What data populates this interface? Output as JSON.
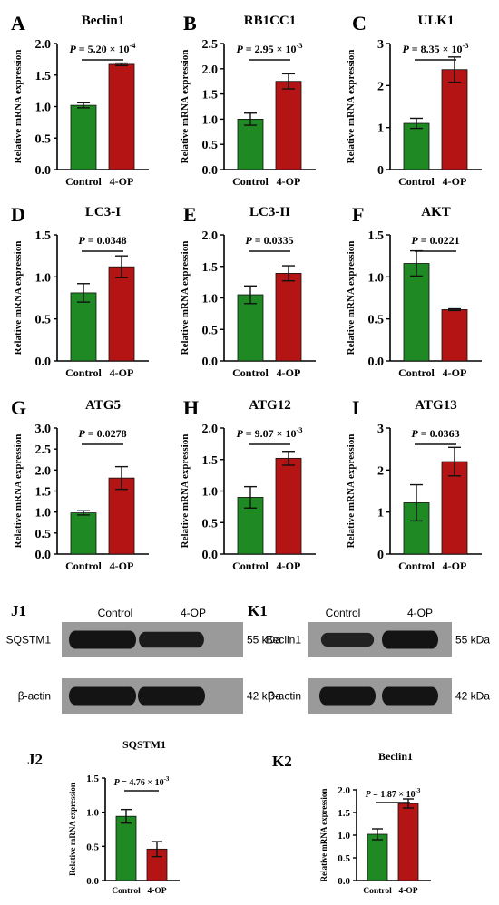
{
  "colors": {
    "control": "#1f8a24",
    "treated": "#b51414",
    "axis": "#000000",
    "blot_bg": "#9a9a9a",
    "band": "#141414"
  },
  "chart_data": [
    {
      "id": "A",
      "panel": "A",
      "gene": "Beclin1",
      "type": "bar",
      "categories": [
        "Control",
        "4-OP"
      ],
      "values": [
        1.02,
        1.67
      ],
      "errors": [
        0.04,
        0.02
      ],
      "ylim": [
        0,
        2.0
      ],
      "ticks": [
        "0.0",
        "0.5",
        "1.0",
        "1.5",
        "2.0"
      ],
      "ylabel": "Relative mRNA expression",
      "p_label": "P",
      "p_text": " = 5.20 × 10",
      "p_exp": "-4"
    },
    {
      "id": "B",
      "panel": "B",
      "gene": "RB1CC1",
      "type": "bar",
      "categories": [
        "Control",
        "4-OP"
      ],
      "values": [
        1.0,
        1.75
      ],
      "errors": [
        0.12,
        0.15
      ],
      "ylim": [
        0,
        2.5
      ],
      "ticks": [
        "0.0",
        "0.5",
        "1.0",
        "1.5",
        "2.0",
        "2.5"
      ],
      "ylabel": "Relative mRNA expression",
      "p_label": "P",
      "p_text": " = 2.95 × 10",
      "p_exp": "-3"
    },
    {
      "id": "C",
      "panel": "C",
      "gene": "ULK1",
      "type": "bar",
      "categories": [
        "Control",
        "4-OP"
      ],
      "values": [
        1.1,
        2.38
      ],
      "errors": [
        0.12,
        0.3
      ],
      "ylim": [
        0,
        3
      ],
      "ticks": [
        "0",
        "1",
        "2",
        "3"
      ],
      "ylabel": "Relative mRNA expression",
      "p_label": "P",
      "p_text": " = 8.35 × 10",
      "p_exp": "-3"
    },
    {
      "id": "D",
      "panel": "D",
      "gene": "LC3-I",
      "type": "bar",
      "categories": [
        "Control",
        "4-OP"
      ],
      "values": [
        0.81,
        1.12
      ],
      "errors": [
        0.11,
        0.13
      ],
      "ylim": [
        0,
        1.5
      ],
      "ticks": [
        "0.0",
        "0.5",
        "1.0",
        "1.5"
      ],
      "ylabel": "Relative mRNA expression",
      "p_label": "P",
      "p_text": " = 0.0348",
      "p_exp": ""
    },
    {
      "id": "E",
      "panel": "E",
      "gene": "LC3-II",
      "type": "bar",
      "categories": [
        "Control",
        "4-OP"
      ],
      "values": [
        1.05,
        1.39
      ],
      "errors": [
        0.14,
        0.12
      ],
      "ylim": [
        0,
        2.0
      ],
      "ticks": [
        "0.0",
        "0.5",
        "1.0",
        "1.5",
        "2.0"
      ],
      "ylabel": "Relative mRNA expression",
      "p_label": "P",
      "p_text": " = 0.0335",
      "p_exp": ""
    },
    {
      "id": "F",
      "panel": "F",
      "gene": "AKT",
      "type": "bar",
      "categories": [
        "Control",
        "4-OP"
      ],
      "values": [
        1.16,
        0.61
      ],
      "errors": [
        0.15,
        0.01
      ],
      "ylim": [
        0,
        1.5
      ],
      "ticks": [
        "0.0",
        "0.5",
        "1.0",
        "1.5"
      ],
      "ylabel": "Relative mRNA expression",
      "p_label": "P",
      "p_text": " = 0.0221",
      "p_exp": ""
    },
    {
      "id": "G",
      "panel": "G",
      "gene": "ATG5",
      "type": "bar",
      "categories": [
        "Control",
        "4-OP"
      ],
      "values": [
        0.98,
        1.81
      ],
      "errors": [
        0.05,
        0.27
      ],
      "ylim": [
        0,
        3.0
      ],
      "ticks": [
        "0.0",
        "0.5",
        "1.0",
        "1.5",
        "2.0",
        "2.5",
        "3.0"
      ],
      "ylabel": "Relative mRNA expression",
      "p_label": "P",
      "p_text": " = 0.0278",
      "p_exp": ""
    },
    {
      "id": "H",
      "panel": "H",
      "gene": "ATG12",
      "type": "bar",
      "categories": [
        "Control",
        "4-OP"
      ],
      "values": [
        0.9,
        1.52
      ],
      "errors": [
        0.17,
        0.11
      ],
      "ylim": [
        0,
        2.0
      ],
      "ticks": [
        "0.0",
        "0.5",
        "1.0",
        "1.5",
        "2.0"
      ],
      "ylabel": "Relative mRNA expression",
      "p_label": "P",
      "p_text": " = 9.07 × 10",
      "p_exp": "-3"
    },
    {
      "id": "I",
      "panel": "I",
      "gene": "ATG13",
      "type": "bar",
      "categories": [
        "Control",
        "4-OP"
      ],
      "values": [
        1.22,
        2.2
      ],
      "errors": [
        0.43,
        0.34
      ],
      "ylim": [
        0,
        3
      ],
      "ticks": [
        "0",
        "1",
        "2",
        "3"
      ],
      "ylabel": "Relative mRNA expression",
      "p_label": "P",
      "p_text": " = 0.0363",
      "p_exp": ""
    },
    {
      "id": "J2",
      "panel": "J2",
      "gene": "SQSTM1",
      "type": "bar",
      "categories": [
        "Control",
        "4-OP"
      ],
      "values": [
        0.94,
        0.46
      ],
      "errors": [
        0.1,
        0.11
      ],
      "ylim": [
        0,
        1.5
      ],
      "ticks": [
        "0.0",
        "0.5",
        "1.0",
        "1.5"
      ],
      "ylabel": "Relative mRNA expression",
      "p_label": "P",
      "p_text": " = 4.76 × 10",
      "p_exp": "-3"
    },
    {
      "id": "K2",
      "panel": "K2",
      "gene": "Beclin1",
      "type": "bar",
      "categories": [
        "Control",
        "4-OP"
      ],
      "values": [
        1.02,
        1.7
      ],
      "errors": [
        0.12,
        0.1
      ],
      "ylim": [
        0,
        2.0
      ],
      "ticks": [
        "0.0",
        "0.5",
        "1.0",
        "1.5",
        "2.0"
      ],
      "ylabel": "Relative mRNA expression",
      "p_label": "P",
      "p_text": " = 1.87 × 10",
      "p_exp": "-3"
    }
  ],
  "blots": [
    {
      "id": "J1",
      "panel": "J1",
      "columns": [
        "Control",
        "4-OP"
      ],
      "rows": [
        {
          "protein": "SQSTM1",
          "size": "55 kDa",
          "intensity": [
            1.0,
            0.8
          ]
        },
        {
          "protein": "β-actin",
          "size": "42 kDa",
          "intensity": [
            1.0,
            1.0
          ]
        }
      ]
    },
    {
      "id": "K1",
      "panel": "K1",
      "columns": [
        "Control",
        "4-OP"
      ],
      "rows": [
        {
          "protein": "Beclin1",
          "size": "55 kDa",
          "intensity": [
            0.6,
            1.0
          ]
        },
        {
          "protein": "β-actin",
          "size": "42 kDa",
          "intensity": [
            1.0,
            1.0
          ]
        }
      ]
    }
  ]
}
